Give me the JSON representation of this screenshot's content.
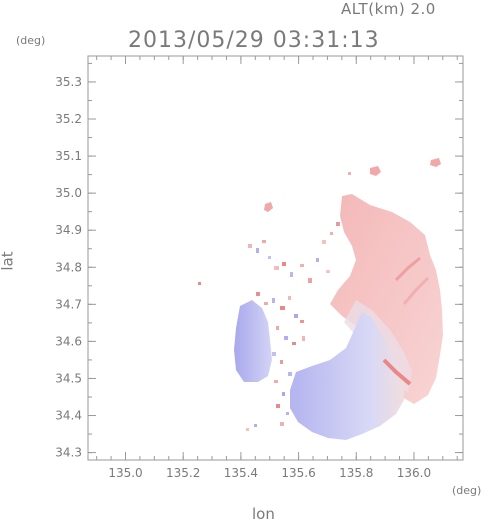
{
  "header": {
    "altitude": "ALT(km) 2.0",
    "timestamp": "2013/05/29 03:31:13"
  },
  "axes": {
    "unit_top": "(deg)",
    "unit_right": "(deg)",
    "xlabel": "lon",
    "ylabel": "lat",
    "x_ticks": [
      "135.0",
      "135.2",
      "135.4",
      "135.6",
      "135.8",
      "136.0"
    ],
    "x_values": [
      135.0,
      135.2,
      135.4,
      135.6,
      135.8,
      136.0
    ],
    "y_ticks": [
      "35.3",
      "35.2",
      "35.1",
      "35.0",
      "34.9",
      "34.8",
      "34.7",
      "34.6",
      "34.5",
      "34.4",
      "34.3"
    ],
    "y_values": [
      35.3,
      35.2,
      35.1,
      35.0,
      34.9,
      34.8,
      34.7,
      34.6,
      34.5,
      34.4,
      34.3
    ],
    "xlim": [
      134.87,
      136.17
    ],
    "ylim": [
      34.28,
      35.37
    ]
  },
  "colors": {
    "frame": "#9a9a9a",
    "text": "#7a7a7a",
    "approaching": "#a8a8ee",
    "receding": "#f5b0b0"
  }
}
